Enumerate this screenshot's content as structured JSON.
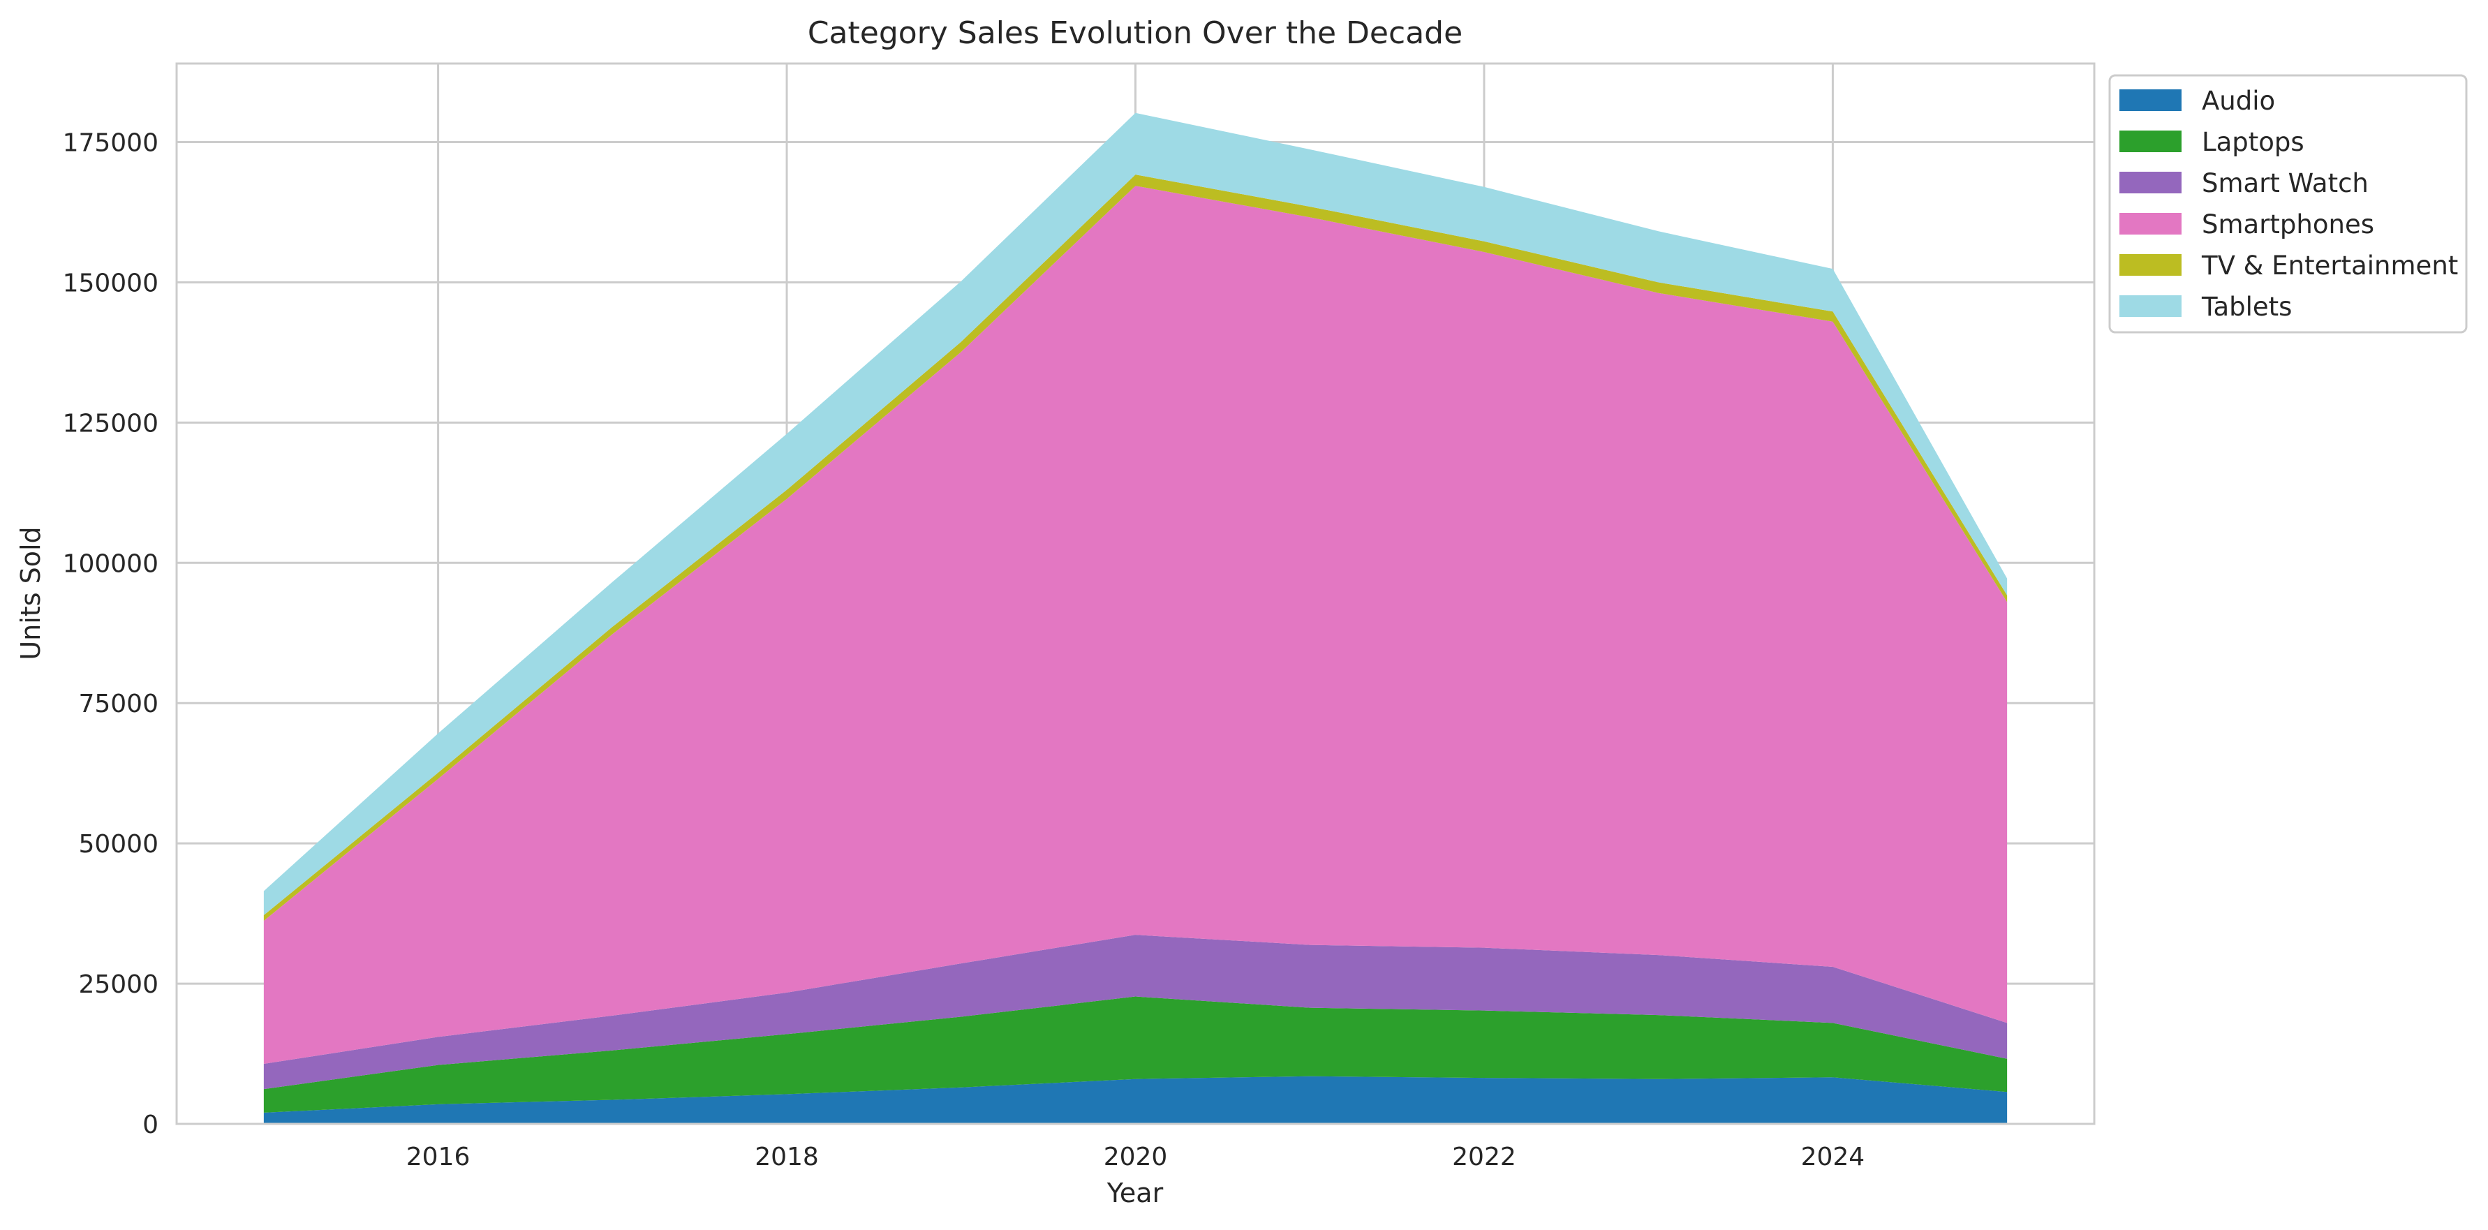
{
  "chart_data": {
    "type": "area",
    "stacked": true,
    "title": "Category Sales Evolution Over the Decade",
    "xlabel": "Year",
    "ylabel": "Units Sold",
    "x": [
      2015,
      2016,
      2017,
      2018,
      2019,
      2020,
      2021,
      2022,
      2023,
      2024,
      2025
    ],
    "xlim": [
      2014.5,
      2025.5
    ],
    "ylim": [
      0,
      189000
    ],
    "xticks": [
      2016,
      2018,
      2020,
      2022,
      2024
    ],
    "yticks": [
      0,
      25000,
      50000,
      75000,
      100000,
      125000,
      150000,
      175000
    ],
    "xtick_labels": [
      "2016",
      "2018",
      "2020",
      "2022",
      "2024"
    ],
    "ytick_labels": [
      "0",
      "25000",
      "50000",
      "75000",
      "100000",
      "125000",
      "150000",
      "175000"
    ],
    "grid": true,
    "legend_position": "upper-right-outside",
    "series": [
      {
        "name": "Audio",
        "color": "#1f77b4",
        "values": [
          2000,
          3500,
          4300,
          5300,
          6500,
          8000,
          8500,
          8200,
          8000,
          8300,
          5700
        ]
      },
      {
        "name": "Laptops",
        "color": "#2ca02c",
        "values": [
          4200,
          7000,
          8800,
          10700,
          12600,
          14700,
          12200,
          12000,
          11400,
          9700,
          5900
        ]
      },
      {
        "name": "Smart Watch",
        "color": "#9467bd",
        "values": [
          4500,
          5000,
          6200,
          7400,
          9500,
          11000,
          11200,
          11200,
          10700,
          10000,
          6400
        ]
      },
      {
        "name": "Smartphones",
        "color": "#e377c2",
        "values": [
          25500,
          46000,
          68000,
          88000,
          109000,
          133500,
          129700,
          124000,
          118000,
          115000,
          75000
        ]
      },
      {
        "name": "TV & Entertainment",
        "color": "#bcbd22",
        "values": [
          1000,
          1100,
          1300,
          1600,
          1800,
          2000,
          1900,
          1900,
          1900,
          1800,
          1200
        ]
      },
      {
        "name": "Tablets",
        "color": "#9edae5",
        "values": [
          4300,
          7000,
          8000,
          10000,
          10800,
          11000,
          10200,
          9700,
          9100,
          7600,
          3000
        ]
      }
    ]
  }
}
